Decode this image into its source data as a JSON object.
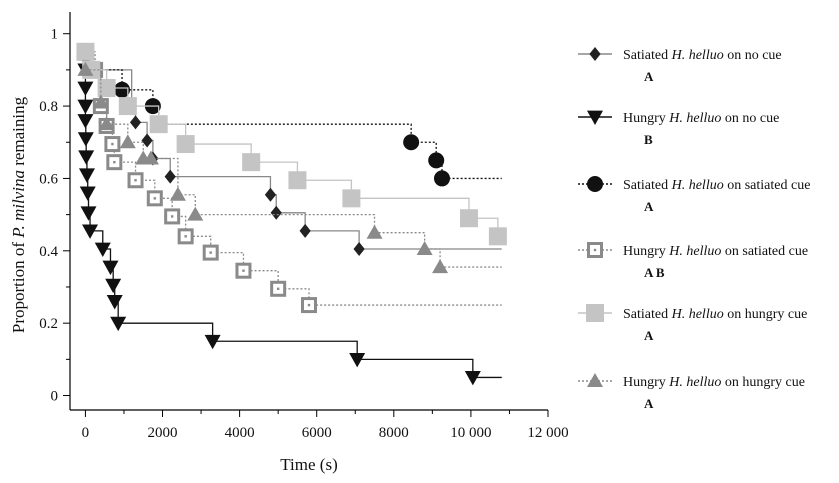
{
  "chart_data": {
    "type": "line",
    "xlabel": "Time (s)",
    "ylabel_parts": [
      {
        "text": "Proportion of ",
        "italic": false
      },
      {
        "text": "P. milvina",
        "italic": true
      },
      {
        "text": " remaining",
        "italic": false
      }
    ],
    "xlim": [
      -400,
      12000
    ],
    "ylim": [
      -0.04,
      1.06
    ],
    "x_ticks": [
      {
        "value": 0,
        "label": "0"
      },
      {
        "value": 2000,
        "label": "2000"
      },
      {
        "value": 4000,
        "label": "4000"
      },
      {
        "value": 6000,
        "label": "6000"
      },
      {
        "value": 8000,
        "label": "8000"
      },
      {
        "value": 10000,
        "label": "10 000"
      },
      {
        "value": 12000,
        "label": "12 000"
      }
    ],
    "y_ticks": [
      {
        "value": 0,
        "label": "0"
      },
      {
        "value": 0.2,
        "label": "0.2"
      },
      {
        "value": 0.4,
        "label": "0.4"
      },
      {
        "value": 0.6,
        "label": "0.6"
      },
      {
        "value": 0.8,
        "label": "0.8"
      },
      {
        "value": 1,
        "label": "1"
      }
    ],
    "series": [
      {
        "name_parts": [
          {
            "text": "Satiated ",
            "italic": false
          },
          {
            "text": "H. helluo",
            "italic": true
          },
          {
            "text": " on no cue",
            "italic": false
          }
        ],
        "significance": "A",
        "marker": "diamond",
        "color": "#222222",
        "line_color": "#888888",
        "dash": "",
        "marker_size": 7,
        "end_x": 10800,
        "points": [
          [
            0,
            0.95
          ],
          [
            100,
            0.9
          ],
          [
            1200,
            0.8
          ],
          [
            1300,
            0.755
          ],
          [
            1600,
            0.705
          ],
          [
            1750,
            0.655
          ],
          [
            2200,
            0.605
          ],
          [
            4800,
            0.555
          ],
          [
            4950,
            0.505
          ],
          [
            5700,
            0.455
          ],
          [
            7100,
            0.405
          ]
        ]
      },
      {
        "name_parts": [
          {
            "text": "Hungry ",
            "italic": false
          },
          {
            "text": "H. helluo",
            "italic": true
          },
          {
            "text": " on no cue",
            "italic": false
          }
        ],
        "significance": "B",
        "marker": "triangle-down",
        "color": "#111111",
        "line_color": "#111111",
        "dash": "",
        "marker_size": 8,
        "end_x": 10800,
        "points": [
          [
            0,
            0.95
          ],
          [
            0,
            0.9
          ],
          [
            0,
            0.85
          ],
          [
            0,
            0.8
          ],
          [
            0,
            0.76
          ],
          [
            10,
            0.71
          ],
          [
            20,
            0.66
          ],
          [
            40,
            0.61
          ],
          [
            60,
            0.56
          ],
          [
            80,
            0.505
          ],
          [
            120,
            0.455
          ],
          [
            450,
            0.405
          ],
          [
            650,
            0.355
          ],
          [
            720,
            0.305
          ],
          [
            760,
            0.26
          ],
          [
            850,
            0.2
          ],
          [
            3300,
            0.15
          ],
          [
            7050,
            0.1
          ],
          [
            10050,
            0.05
          ]
        ]
      },
      {
        "name_parts": [
          {
            "text": "Satiated ",
            "italic": false
          },
          {
            "text": "H. helluo",
            "italic": true
          },
          {
            "text": " on satiated cue",
            "italic": false
          }
        ],
        "significance": "A",
        "marker": "circle",
        "color": "#111111",
        "line_color": "#111111",
        "dash": "2,2",
        "marker_size": 8,
        "end_x": 10800,
        "points": [
          [
            0,
            0.945
          ],
          [
            100,
            0.9
          ],
          [
            950,
            0.845
          ],
          [
            1750,
            0.8
          ],
          [
            1900,
            0.75
          ],
          [
            8450,
            0.7
          ],
          [
            9100,
            0.65
          ],
          [
            9250,
            0.6
          ]
        ]
      },
      {
        "name_parts": [
          {
            "text": "Hungry ",
            "italic": false
          },
          {
            "text": "H. helluo",
            "italic": true
          },
          {
            "text": " on satiated cue",
            "italic": false
          }
        ],
        "significance": "A B",
        "marker": "square-open",
        "color": "#8a8a8a",
        "line_color": "#8a8a8a",
        "dash": "2,2",
        "marker_size": 8,
        "end_x": 10800,
        "points": [
          [
            0,
            0.95
          ],
          [
            250,
            0.9
          ],
          [
            400,
            0.8
          ],
          [
            550,
            0.745
          ],
          [
            700,
            0.695
          ],
          [
            750,
            0.645
          ],
          [
            1300,
            0.595
          ],
          [
            1800,
            0.545
          ],
          [
            2250,
            0.495
          ],
          [
            2600,
            0.44
          ],
          [
            3250,
            0.395
          ],
          [
            4100,
            0.345
          ],
          [
            5000,
            0.295
          ],
          [
            5800,
            0.25
          ]
        ]
      },
      {
        "name_parts": [
          {
            "text": "Satiated ",
            "italic": false
          },
          {
            "text": "H. helluo",
            "italic": true
          },
          {
            "text": " on hungry cue",
            "italic": false
          }
        ],
        "significance": "A",
        "marker": "square",
        "color": "#c4c4c4",
        "line_color": "#c4c4c4",
        "dash": "",
        "marker_size": 9,
        "end_x": 10800,
        "points": [
          [
            0,
            0.95
          ],
          [
            150,
            0.9
          ],
          [
            550,
            0.85
          ],
          [
            1100,
            0.8
          ],
          [
            1900,
            0.75
          ],
          [
            2600,
            0.695
          ],
          [
            4300,
            0.645
          ],
          [
            5500,
            0.595
          ],
          [
            6900,
            0.545
          ],
          [
            9950,
            0.49
          ],
          [
            10700,
            0.44
          ]
        ]
      },
      {
        "name_parts": [
          {
            "text": "Hungry ",
            "italic": false
          },
          {
            "text": "H. helluo",
            "italic": true
          },
          {
            "text": " on hungry cue",
            "italic": false
          }
        ],
        "significance": "A",
        "marker": "triangle-up",
        "color": "#8a8a8a",
        "line_color": "#8a8a8a",
        "dash": "2,2",
        "marker_size": 8,
        "end_x": 10800,
        "points": [
          [
            0,
            0.9
          ],
          [
            400,
            0.81
          ],
          [
            550,
            0.75
          ],
          [
            1100,
            0.7
          ],
          [
            1500,
            0.655
          ],
          [
            1700,
            0.655
          ],
          [
            2400,
            0.555
          ],
          [
            2850,
            0.5
          ],
          [
            7500,
            0.45
          ],
          [
            8800,
            0.405
          ],
          [
            9200,
            0.355
          ]
        ]
      }
    ]
  }
}
